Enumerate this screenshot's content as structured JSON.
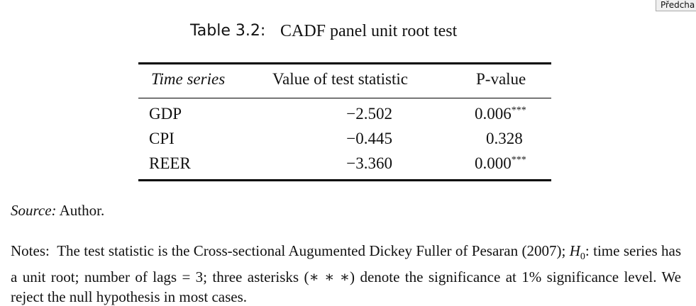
{
  "button": {
    "label": "Předcha"
  },
  "table": {
    "label": "Table 3.2:",
    "title": "CADF panel unit root test",
    "header": [
      "Time series",
      "Value of test statistic",
      "P-value"
    ],
    "rows": [
      [
        "GDP",
        "−2.502",
        {
          "value": "0.006",
          "stars": "***"
        }
      ],
      [
        "CPI",
        "−0.445",
        {
          "value": "0.328"
        }
      ],
      [
        "REER",
        "−3.360",
        {
          "value": "0.000",
          "stars": "***"
        }
      ]
    ]
  },
  "source": {
    "label": "Source:",
    "text": "Author."
  },
  "notes": {
    "label": "Notes:",
    "text1": "The test statistic is the Cross-sectional Augumented Dickey Fuller of Pesaran (2007);",
    "symbol": "H",
    "subscript": "0",
    "text2": ": time series has a unit root; number of lags = 3; three asterisks (∗ ∗ ∗) denote the significance at 1% significance level. We reject the null hypothesis in most cases."
  }
}
